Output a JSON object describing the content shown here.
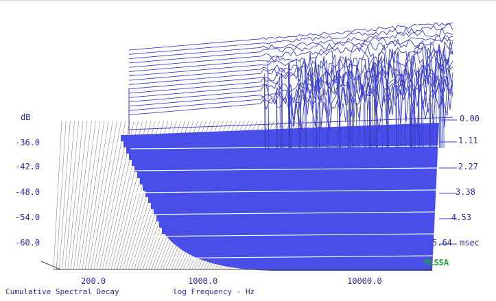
{
  "chart_data": {
    "type": "waterfall",
    "caption": "Cumulative Spectral Decay",
    "xlabel": "log Frequency - Hz",
    "ylabel": "dB",
    "x_scale": "log",
    "x_ticks": [
      "200.0",
      "1000.0",
      "10000.0"
    ],
    "y_ticks": [
      "-36.0",
      "-42.0",
      "-48.0",
      "-54.0",
      "-60.0"
    ],
    "y_range": [
      -66,
      -30
    ],
    "time_axis_label": "msec",
    "time_ticks": [
      "0.00",
      "1.11",
      "2.27",
      "3.38",
      "4.53",
      "5.64"
    ],
    "brand": "MLSSA",
    "colors": {
      "fill": "#4a4ee8",
      "line": "#3a3ec8",
      "text": "#2b2fa0",
      "brand": "#18a838"
    }
  }
}
